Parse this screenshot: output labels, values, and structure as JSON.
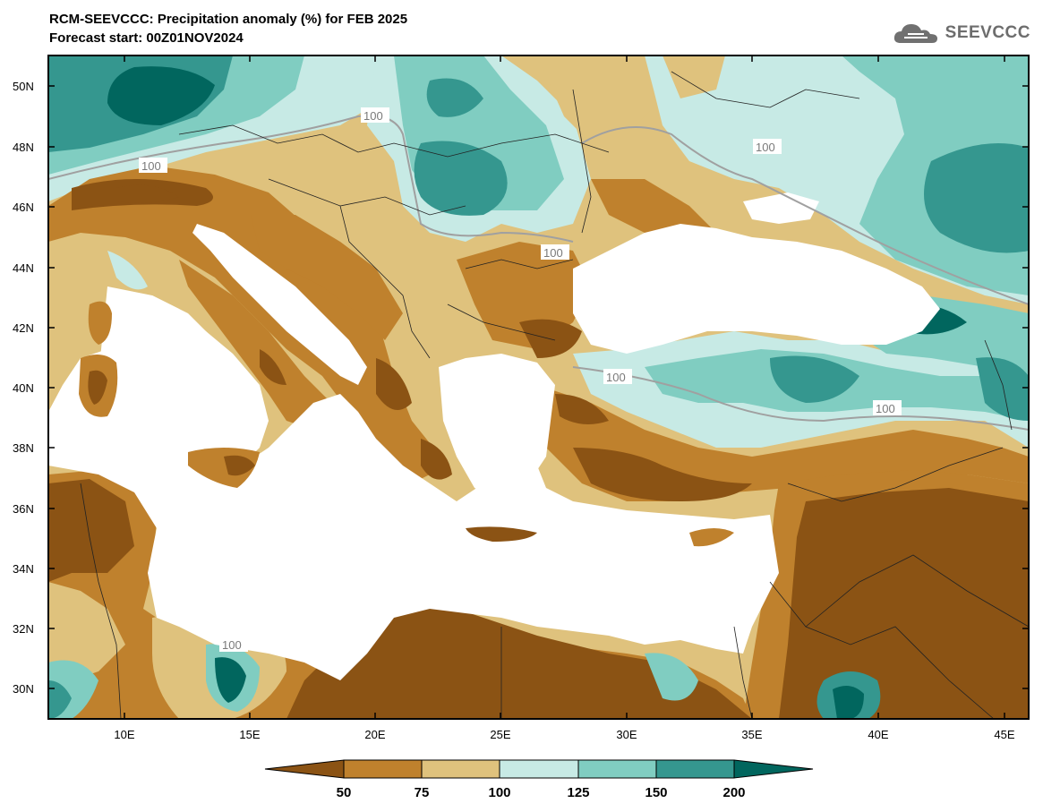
{
  "header": {
    "title_line1": "RCM-SEEVCCC: Precipitation anomaly (%) for FEB 2025",
    "title_line2": "Forecast start: 00Z01NOV2024"
  },
  "logo": {
    "text": "SEEVCCC",
    "icon": "cloud-icon"
  },
  "map": {
    "lat_labels": [
      "50N",
      "48N",
      "46N",
      "44N",
      "42N",
      "40N",
      "38N",
      "36N",
      "34N",
      "32N",
      "30N"
    ],
    "lon_labels": [
      "10E",
      "15E",
      "20E",
      "25E",
      "30E",
      "35E",
      "40E",
      "45E"
    ],
    "contour_labels": [
      "100",
      "100",
      "100",
      "100",
      "100",
      "100",
      "100"
    ]
  },
  "legend": {
    "labels": [
      "50",
      "75",
      "100",
      "125",
      "150",
      "200"
    ],
    "colors": [
      "#8b5314",
      "#bf812d",
      "#dfc27d",
      "#c7eae5",
      "#80cdc1",
      "#35978f",
      "#01665e"
    ]
  }
}
